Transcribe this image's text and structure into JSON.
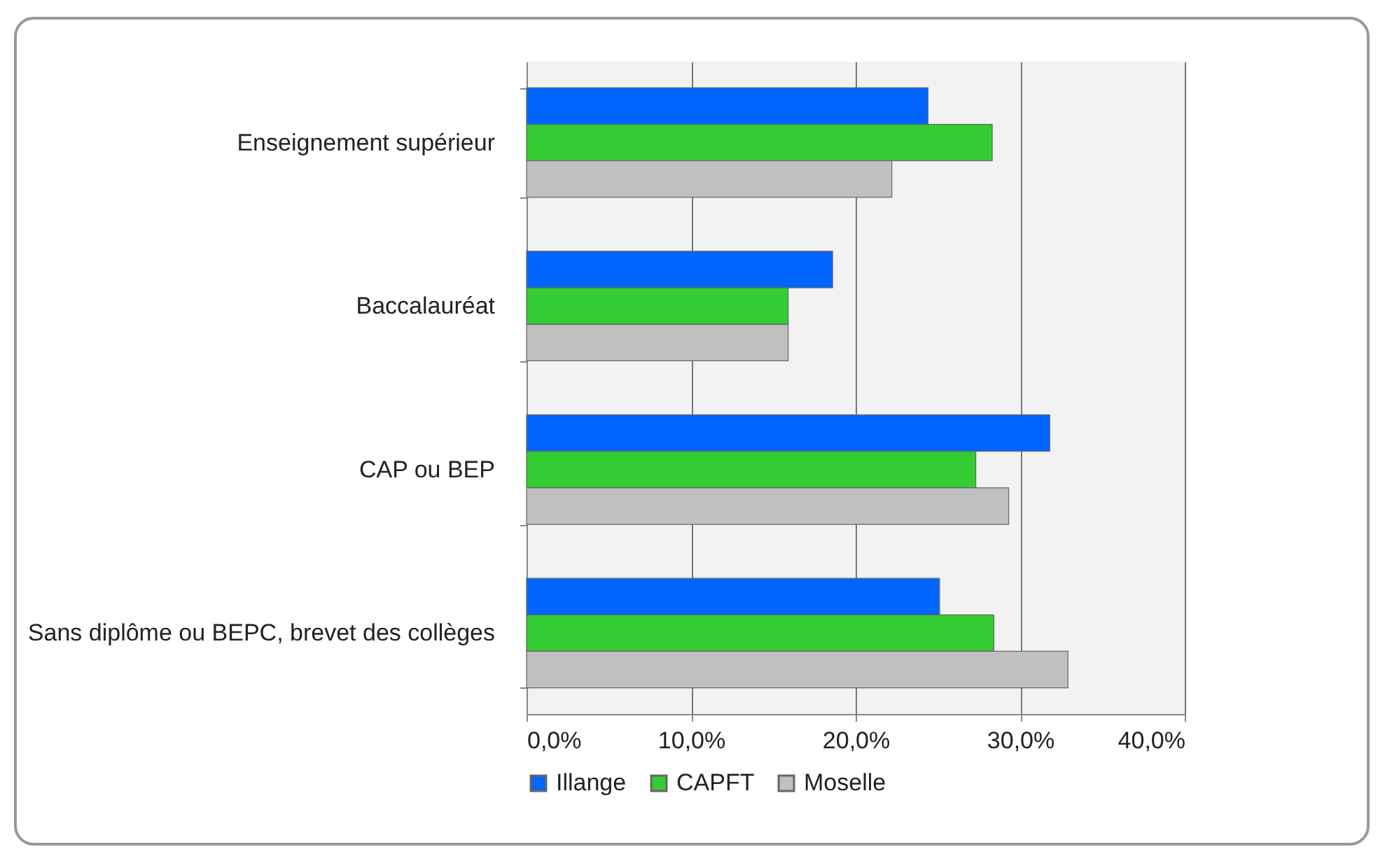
{
  "chart_data": {
    "type": "bar",
    "orientation": "horizontal",
    "categories": [
      "Enseignement supérieur",
      "Baccalauréat",
      "CAP ou BEP",
      "Sans diplôme ou BEPC, brevet des collèges"
    ],
    "series": [
      {
        "name": "Illange",
        "color": "#0066ff",
        "values": [
          24.4,
          18.6,
          31.8,
          25.1
        ]
      },
      {
        "name": "CAPFT",
        "color": "#33cc33",
        "values": [
          28.3,
          15.9,
          27.3,
          28.4
        ]
      },
      {
        "name": "Moselle",
        "color": "#c0c0c0",
        "values": [
          22.2,
          15.9,
          29.3,
          32.9
        ]
      }
    ],
    "xlim": [
      0,
      40
    ],
    "xticks": [
      {
        "value": 0,
        "label": "0,0%"
      },
      {
        "value": 10,
        "label": "10,0%"
      },
      {
        "value": 20,
        "label": "20,0%"
      },
      {
        "value": 30,
        "label": "30,0%"
      },
      {
        "value": 40,
        "label": "40,0%"
      }
    ],
    "grid": "x",
    "legend": "bottom"
  }
}
